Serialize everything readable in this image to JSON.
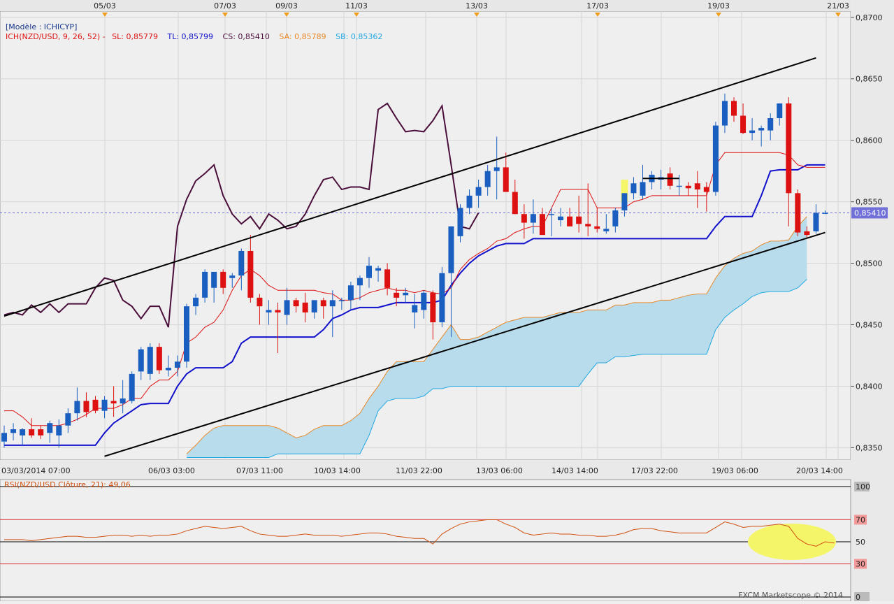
{
  "top_dates": [
    "05/03",
    "07/03",
    "09/03",
    "11/03",
    "13/03",
    "17/03",
    "19/03",
    "21/03"
  ],
  "bottom_dates": [
    "03/03/2014 07:00",
    "06/03 03:00",
    "07/03 11:00",
    "10/03 14:00",
    "11/03 22:00",
    "13/03 06:00",
    "14/03 14:00",
    "17/03 22:00",
    "19/03 06:00",
    "20/03 14:00"
  ],
  "model_label": "[Modèle : ICHICYP]",
  "legend": {
    "ich": "ICH(NZD/USD, 9, 26, 52) -",
    "sl": "SL: 0,85779",
    "tl": "TL: 0,85799",
    "cs": "CS: 0,85410",
    "sa": "SA: 0,85789",
    "sb": "SB: 0,85362"
  },
  "price_labels": [
    "0,8700",
    "0,8650",
    "0,8600",
    "0,8550",
    "0,8500",
    "0,8450",
    "0,8400",
    "0,8350"
  ],
  "current_price": "0,85410",
  "rsi_label": "RSI(NZD/USD.Clôture, 21): 49,06",
  "rsi_levels": [
    "100",
    "70",
    "50",
    "30",
    "0"
  ],
  "copyright": "FXCM Marketscope © 2014",
  "colors": {
    "bull": "#1a5fc0",
    "bear": "#dd1111",
    "tenkan": "#dd1111",
    "kijun": "#1111cc",
    "chikou": "#4a0e3a",
    "senkou_a": "#e88a2a",
    "senkou_b": "#22a8e0",
    "cloud": "#b9dced",
    "rsi_line": "#d05010",
    "highlight": "#f5f56a"
  },
  "chart_data": {
    "type": "candlestick",
    "instrument": "NZD/USD",
    "ylim": [
      0.834,
      0.8705
    ],
    "rsi_ylim": [
      0,
      100
    ],
    "candles": [
      {
        "o": 0.8355,
        "h": 0.8368,
        "l": 0.835,
        "c": 0.8362
      },
      {
        "o": 0.8362,
        "h": 0.837,
        "l": 0.8356,
        "c": 0.8365
      },
      {
        "o": 0.836,
        "h": 0.8366,
        "l": 0.8352,
        "c": 0.8365
      },
      {
        "o": 0.8365,
        "h": 0.8374,
        "l": 0.8358,
        "c": 0.836
      },
      {
        "o": 0.8365,
        "h": 0.8368,
        "l": 0.8357,
        "c": 0.836
      },
      {
        "o": 0.8362,
        "h": 0.8372,
        "l": 0.8354,
        "c": 0.837
      },
      {
        "o": 0.836,
        "h": 0.8373,
        "l": 0.835,
        "c": 0.8368
      },
      {
        "o": 0.8368,
        "h": 0.8382,
        "l": 0.8362,
        "c": 0.8378
      },
      {
        "o": 0.8378,
        "h": 0.8399,
        "l": 0.8372,
        "c": 0.8388
      },
      {
        "o": 0.8388,
        "h": 0.8395,
        "l": 0.8375,
        "c": 0.8379
      },
      {
        "o": 0.8389,
        "h": 0.8392,
        "l": 0.8378,
        "c": 0.838
      },
      {
        "o": 0.838,
        "h": 0.8392,
        "l": 0.8374,
        "c": 0.8389
      },
      {
        "o": 0.8388,
        "h": 0.84,
        "l": 0.8375,
        "c": 0.8386
      },
      {
        "o": 0.8386,
        "h": 0.8405,
        "l": 0.8378,
        "c": 0.839
      },
      {
        "o": 0.8388,
        "h": 0.8412,
        "l": 0.8386,
        "c": 0.841
      },
      {
        "o": 0.8412,
        "h": 0.8432,
        "l": 0.8405,
        "c": 0.843
      },
      {
        "o": 0.841,
        "h": 0.8435,
        "l": 0.8405,
        "c": 0.8432
      },
      {
        "o": 0.8432,
        "h": 0.8435,
        "l": 0.841,
        "c": 0.8413
      },
      {
        "o": 0.8413,
        "h": 0.8425,
        "l": 0.8408,
        "c": 0.8415
      },
      {
        "o": 0.8415,
        "h": 0.8425,
        "l": 0.8408,
        "c": 0.842
      },
      {
        "o": 0.842,
        "h": 0.8467,
        "l": 0.8415,
        "c": 0.8465
      },
      {
        "o": 0.8465,
        "h": 0.8475,
        "l": 0.8458,
        "c": 0.8472
      },
      {
        "o": 0.8472,
        "h": 0.8495,
        "l": 0.8468,
        "c": 0.8493
      },
      {
        "o": 0.848,
        "h": 0.8492,
        "l": 0.8468,
        "c": 0.8493
      },
      {
        "o": 0.8493,
        "h": 0.8495,
        "l": 0.8475,
        "c": 0.848
      },
      {
        "o": 0.8488,
        "h": 0.8492,
        "l": 0.848,
        "c": 0.849
      },
      {
        "o": 0.849,
        "h": 0.8512,
        "l": 0.8478,
        "c": 0.851
      },
      {
        "o": 0.851,
        "h": 0.8523,
        "l": 0.8468,
        "c": 0.8472
      },
      {
        "o": 0.8472,
        "h": 0.8475,
        "l": 0.845,
        "c": 0.8465
      },
      {
        "o": 0.846,
        "h": 0.847,
        "l": 0.845,
        "c": 0.8462
      },
      {
        "o": 0.8462,
        "h": 0.8468,
        "l": 0.8427,
        "c": 0.846
      },
      {
        "o": 0.8458,
        "h": 0.848,
        "l": 0.845,
        "c": 0.847
      },
      {
        "o": 0.847,
        "h": 0.8472,
        "l": 0.846,
        "c": 0.8465
      },
      {
        "o": 0.8468,
        "h": 0.8476,
        "l": 0.8452,
        "c": 0.846
      },
      {
        "o": 0.846,
        "h": 0.847,
        "l": 0.8455,
        "c": 0.847
      },
      {
        "o": 0.847,
        "h": 0.8472,
        "l": 0.8455,
        "c": 0.8465
      },
      {
        "o": 0.8465,
        "h": 0.8478,
        "l": 0.844,
        "c": 0.847
      },
      {
        "o": 0.847,
        "h": 0.8472,
        "l": 0.8462,
        "c": 0.847
      },
      {
        "o": 0.847,
        "h": 0.8485,
        "l": 0.8462,
        "c": 0.8482
      },
      {
        "o": 0.8482,
        "h": 0.849,
        "l": 0.847,
        "c": 0.8488
      },
      {
        "o": 0.8488,
        "h": 0.8505,
        "l": 0.848,
        "c": 0.8498
      },
      {
        "o": 0.8494,
        "h": 0.8498,
        "l": 0.8485,
        "c": 0.8496
      },
      {
        "o": 0.8495,
        "h": 0.85,
        "l": 0.8474,
        "c": 0.848
      },
      {
        "o": 0.8476,
        "h": 0.848,
        "l": 0.8465,
        "c": 0.8472
      },
      {
        "o": 0.8474,
        "h": 0.848,
        "l": 0.8468,
        "c": 0.8476
      },
      {
        "o": 0.846,
        "h": 0.8475,
        "l": 0.8447,
        "c": 0.8466
      },
      {
        "o": 0.8462,
        "h": 0.8478,
        "l": 0.8455,
        "c": 0.8476
      },
      {
        "o": 0.8476,
        "h": 0.8478,
        "l": 0.8438,
        "c": 0.8452
      },
      {
        "o": 0.8452,
        "h": 0.8497,
        "l": 0.8448,
        "c": 0.8492
      },
      {
        "o": 0.8492,
        "h": 0.853,
        "l": 0.844,
        "c": 0.853
      },
      {
        "o": 0.8522,
        "h": 0.8548,
        "l": 0.8517,
        "c": 0.8545
      },
      {
        "o": 0.8545,
        "h": 0.856,
        "l": 0.854,
        "c": 0.8555
      },
      {
        "o": 0.8555,
        "h": 0.8568,
        "l": 0.8545,
        "c": 0.8562
      },
      {
        "o": 0.8562,
        "h": 0.858,
        "l": 0.8555,
        "c": 0.8575
      },
      {
        "o": 0.8575,
        "h": 0.8603,
        "l": 0.8552,
        "c": 0.8578
      },
      {
        "o": 0.8578,
        "h": 0.859,
        "l": 0.856,
        "c": 0.8558
      },
      {
        "o": 0.8558,
        "h": 0.8568,
        "l": 0.854,
        "c": 0.854
      },
      {
        "o": 0.854,
        "h": 0.8548,
        "l": 0.852,
        "c": 0.8533
      },
      {
        "o": 0.8533,
        "h": 0.8552,
        "l": 0.8524,
        "c": 0.854
      },
      {
        "o": 0.854,
        "h": 0.8545,
        "l": 0.8525,
        "c": 0.8523
      },
      {
        "o": 0.854,
        "h": 0.8545,
        "l": 0.8522,
        "c": 0.854
      },
      {
        "o": 0.8535,
        "h": 0.8545,
        "l": 0.853,
        "c": 0.8538
      },
      {
        "o": 0.8538,
        "h": 0.8545,
        "l": 0.853,
        "c": 0.853
      },
      {
        "o": 0.8538,
        "h": 0.8555,
        "l": 0.8525,
        "c": 0.8532
      },
      {
        "o": 0.8532,
        "h": 0.8565,
        "l": 0.8522,
        "c": 0.853
      },
      {
        "o": 0.853,
        "h": 0.8545,
        "l": 0.8525,
        "c": 0.8528
      },
      {
        "o": 0.8526,
        "h": 0.854,
        "l": 0.8524,
        "c": 0.8528
      },
      {
        "o": 0.853,
        "h": 0.8545,
        "l": 0.8525,
        "c": 0.8543
      },
      {
        "o": 0.8543,
        "h": 0.8557,
        "l": 0.8538,
        "c": 0.8557
      },
      {
        "o": 0.8557,
        "h": 0.857,
        "l": 0.8552,
        "c": 0.8565
      },
      {
        "o": 0.8555,
        "h": 0.858,
        "l": 0.8552,
        "c": 0.8566
      },
      {
        "o": 0.8566,
        "h": 0.8575,
        "l": 0.856,
        "c": 0.8572
      },
      {
        "o": 0.8568,
        "h": 0.8576,
        "l": 0.856,
        "c": 0.857
      },
      {
        "o": 0.8573,
        "h": 0.8578,
        "l": 0.856,
        "c": 0.8563
      },
      {
        "o": 0.8563,
        "h": 0.8572,
        "l": 0.8555,
        "c": 0.8563
      },
      {
        "o": 0.8563,
        "h": 0.8566,
        "l": 0.8555,
        "c": 0.8561
      },
      {
        "o": 0.8565,
        "h": 0.8575,
        "l": 0.8545,
        "c": 0.856
      },
      {
        "o": 0.8562,
        "h": 0.8566,
        "l": 0.8542,
        "c": 0.8558
      },
      {
        "o": 0.8558,
        "h": 0.8615,
        "l": 0.8555,
        "c": 0.8612
      },
      {
        "o": 0.8612,
        "h": 0.8638,
        "l": 0.8606,
        "c": 0.8632
      },
      {
        "o": 0.8632,
        "h": 0.8635,
        "l": 0.8615,
        "c": 0.862
      },
      {
        "o": 0.862,
        "h": 0.863,
        "l": 0.8605,
        "c": 0.8606
      },
      {
        "o": 0.8606,
        "h": 0.8618,
        "l": 0.86,
        "c": 0.8608
      },
      {
        "o": 0.8608,
        "h": 0.8612,
        "l": 0.8595,
        "c": 0.861
      },
      {
        "o": 0.8608,
        "h": 0.8622,
        "l": 0.86,
        "c": 0.8618
      },
      {
        "o": 0.8618,
        "h": 0.863,
        "l": 0.8612,
        "c": 0.863
      },
      {
        "o": 0.863,
        "h": 0.8635,
        "l": 0.853,
        "c": 0.8557
      },
      {
        "o": 0.8557,
        "h": 0.856,
        "l": 0.8522,
        "c": 0.8525
      },
      {
        "o": 0.8526,
        "h": 0.853,
        "l": 0.852,
        "c": 0.8523
      },
      {
        "o": 0.8526,
        "h": 0.8548,
        "l": 0.8524,
        "c": 0.8541
      },
      {
        "o": 0.8541,
        "h": 0.8543,
        "l": 0.854,
        "c": 0.8541
      }
    ],
    "tenkan": [
      0.838,
      0.838,
      0.8375,
      0.8368,
      0.8368,
      0.8368,
      0.8368,
      0.837,
      0.8373,
      0.8377,
      0.8382,
      0.8382,
      0.8382,
      0.8385,
      0.839,
      0.839,
      0.84,
      0.8405,
      0.8405,
      0.8412,
      0.8435,
      0.844,
      0.8448,
      0.8452,
      0.8462,
      0.8478,
      0.849,
      0.8495,
      0.849,
      0.8482,
      0.8478,
      0.8478,
      0.8478,
      0.8478,
      0.8478,
      0.8476,
      0.8475,
      0.847,
      0.847,
      0.8472,
      0.8476,
      0.8478,
      0.848,
      0.8478,
      0.8478,
      0.8476,
      0.8478,
      0.8476,
      0.8475,
      0.848,
      0.8495,
      0.8503,
      0.8508,
      0.8512,
      0.8518,
      0.852,
      0.8525,
      0.8528,
      0.853,
      0.853,
      0.8545,
      0.856,
      0.856,
      0.856,
      0.856,
      0.8545,
      0.8545,
      0.8545,
      0.8545,
      0.855,
      0.8552,
      0.8555,
      0.8555,
      0.8555,
      0.8555,
      0.8555,
      0.8555,
      0.8555,
      0.858,
      0.859,
      0.859,
      0.859,
      0.859,
      0.859,
      0.859,
      0.859,
      0.8588,
      0.858,
      0.8578,
      0.8578,
      0.8578
    ],
    "kijun": [
      0.8352,
      0.8352,
      0.8352,
      0.8352,
      0.8352,
      0.8352,
      0.8352,
      0.8352,
      0.8352,
      0.8352,
      0.8352,
      0.8362,
      0.837,
      0.8375,
      0.838,
      0.8385,
      0.8386,
      0.8386,
      0.8386,
      0.84,
      0.841,
      0.8415,
      0.8415,
      0.8415,
      0.8415,
      0.842,
      0.8435,
      0.844,
      0.844,
      0.844,
      0.844,
      0.844,
      0.844,
      0.844,
      0.844,
      0.8446,
      0.8455,
      0.8458,
      0.8462,
      0.8464,
      0.8464,
      0.8464,
      0.8466,
      0.8468,
      0.8468,
      0.8468,
      0.8468,
      0.8468,
      0.847,
      0.8482,
      0.8492,
      0.85,
      0.8506,
      0.851,
      0.8514,
      0.8516,
      0.8516,
      0.8516,
      0.852,
      0.852,
      0.852,
      0.852,
      0.852,
      0.852,
      0.852,
      0.852,
      0.852,
      0.852,
      0.852,
      0.852,
      0.852,
      0.852,
      0.852,
      0.852,
      0.852,
      0.852,
      0.852,
      0.852,
      0.853,
      0.8538,
      0.8538,
      0.8538,
      0.8538,
      0.8555,
      0.8575,
      0.8576,
      0.8576,
      0.8576,
      0.858,
      0.858,
      0.858
    ],
    "chikou": [
      0.8458,
      0.846,
      0.8458,
      0.8466,
      0.846,
      0.8467,
      0.846,
      0.8467,
      0.8467,
      0.8467,
      0.848,
      0.8488,
      0.8486,
      0.847,
      0.8465,
      0.8455,
      0.8465,
      0.8465,
      0.8448,
      0.853,
      0.8552,
      0.8567,
      0.8573,
      0.858,
      0.8555,
      0.854,
      0.8532,
      0.8538,
      0.8528,
      0.854,
      0.8535,
      0.8528,
      0.853,
      0.854,
      0.8555,
      0.8568,
      0.857,
      0.856,
      0.8562,
      0.8562,
      0.856,
      0.8625,
      0.863,
      0.8618,
      0.8607,
      0.8608,
      0.8607,
      0.8616,
      0.8628,
      0.858,
      0.853,
      0.8528,
      0.8541
    ],
    "senkou_a": [
      0.8345,
      0.8352,
      0.836,
      0.8366,
      0.8368,
      0.8368,
      0.8368,
      0.8368,
      0.8368,
      0.8368,
      0.8366,
      0.8362,
      0.8358,
      0.836,
      0.8365,
      0.8368,
      0.8368,
      0.8368,
      0.8372,
      0.8378,
      0.839,
      0.84,
      0.8412,
      0.842,
      0.842,
      0.842,
      0.842,
      0.843,
      0.844,
      0.845,
      0.8438,
      0.8438,
      0.844,
      0.8444,
      0.8448,
      0.8452,
      0.8454,
      0.8456,
      0.8456,
      0.8456,
      0.8458,
      0.846,
      0.846,
      0.846,
      0.8462,
      0.8462,
      0.8462,
      0.8466,
      0.8466,
      0.8468,
      0.8468,
      0.8468,
      0.847,
      0.847,
      0.8472,
      0.8474,
      0.8475,
      0.8475,
      0.8488,
      0.8498,
      0.8504,
      0.8508,
      0.851,
      0.8515,
      0.8518,
      0.8518,
      0.8519,
      0.853,
      0.8538
    ],
    "senkou_b": [
      0.8342,
      0.8342,
      0.8342,
      0.8342,
      0.8342,
      0.8342,
      0.8342,
      0.8342,
      0.8342,
      0.8342,
      0.8345,
      0.8345,
      0.8345,
      0.8345,
      0.8345,
      0.8345,
      0.8345,
      0.8345,
      0.8345,
      0.8345,
      0.836,
      0.838,
      0.8388,
      0.839,
      0.839,
      0.839,
      0.8392,
      0.8398,
      0.8398,
      0.84,
      0.84,
      0.84,
      0.84,
      0.84,
      0.84,
      0.84,
      0.84,
      0.84,
      0.84,
      0.84,
      0.84,
      0.84,
      0.84,
      0.84,
      0.841,
      0.8419,
      0.8419,
      0.8424,
      0.8424,
      0.8425,
      0.8426,
      0.8426,
      0.8426,
      0.8426,
      0.8426,
      0.8426,
      0.8426,
      0.8426,
      0.8446,
      0.8456,
      0.8462,
      0.8467,
      0.8473,
      0.8476,
      0.8477,
      0.8477,
      0.8477,
      0.848,
      0.8487
    ],
    "trendlines": [
      {
        "from": {
          "candle": 0,
          "value": 0.8457
        },
        "to": {
          "candle": 89,
          "value": 0.8667
        }
      },
      {
        "from": {
          "candle": 11,
          "value": 0.8343
        },
        "to": {
          "candle": 90,
          "value": 0.8525
        }
      }
    ],
    "rsi": [
      52,
      52,
      52,
      51,
      52,
      53,
      54,
      55,
      55,
      54,
      54,
      55,
      56,
      56,
      55,
      56,
      55,
      56,
      56,
      57,
      60,
      62,
      64,
      63,
      62,
      63,
      64,
      60,
      57,
      56,
      55,
      55,
      56,
      57,
      56,
      56,
      56,
      55,
      56,
      57,
      58,
      58,
      57,
      55,
      54,
      53,
      53,
      48,
      57,
      62,
      66,
      68,
      69,
      70,
      70,
      66,
      63,
      58,
      56,
      57,
      58,
      57,
      57,
      56,
      56,
      55,
      55,
      56,
      58,
      61,
      62,
      62,
      60,
      59,
      58,
      58,
      58,
      58,
      63,
      68,
      66,
      63,
      64,
      64,
      65,
      66,
      64,
      53,
      48,
      46,
      50,
      49
    ]
  }
}
